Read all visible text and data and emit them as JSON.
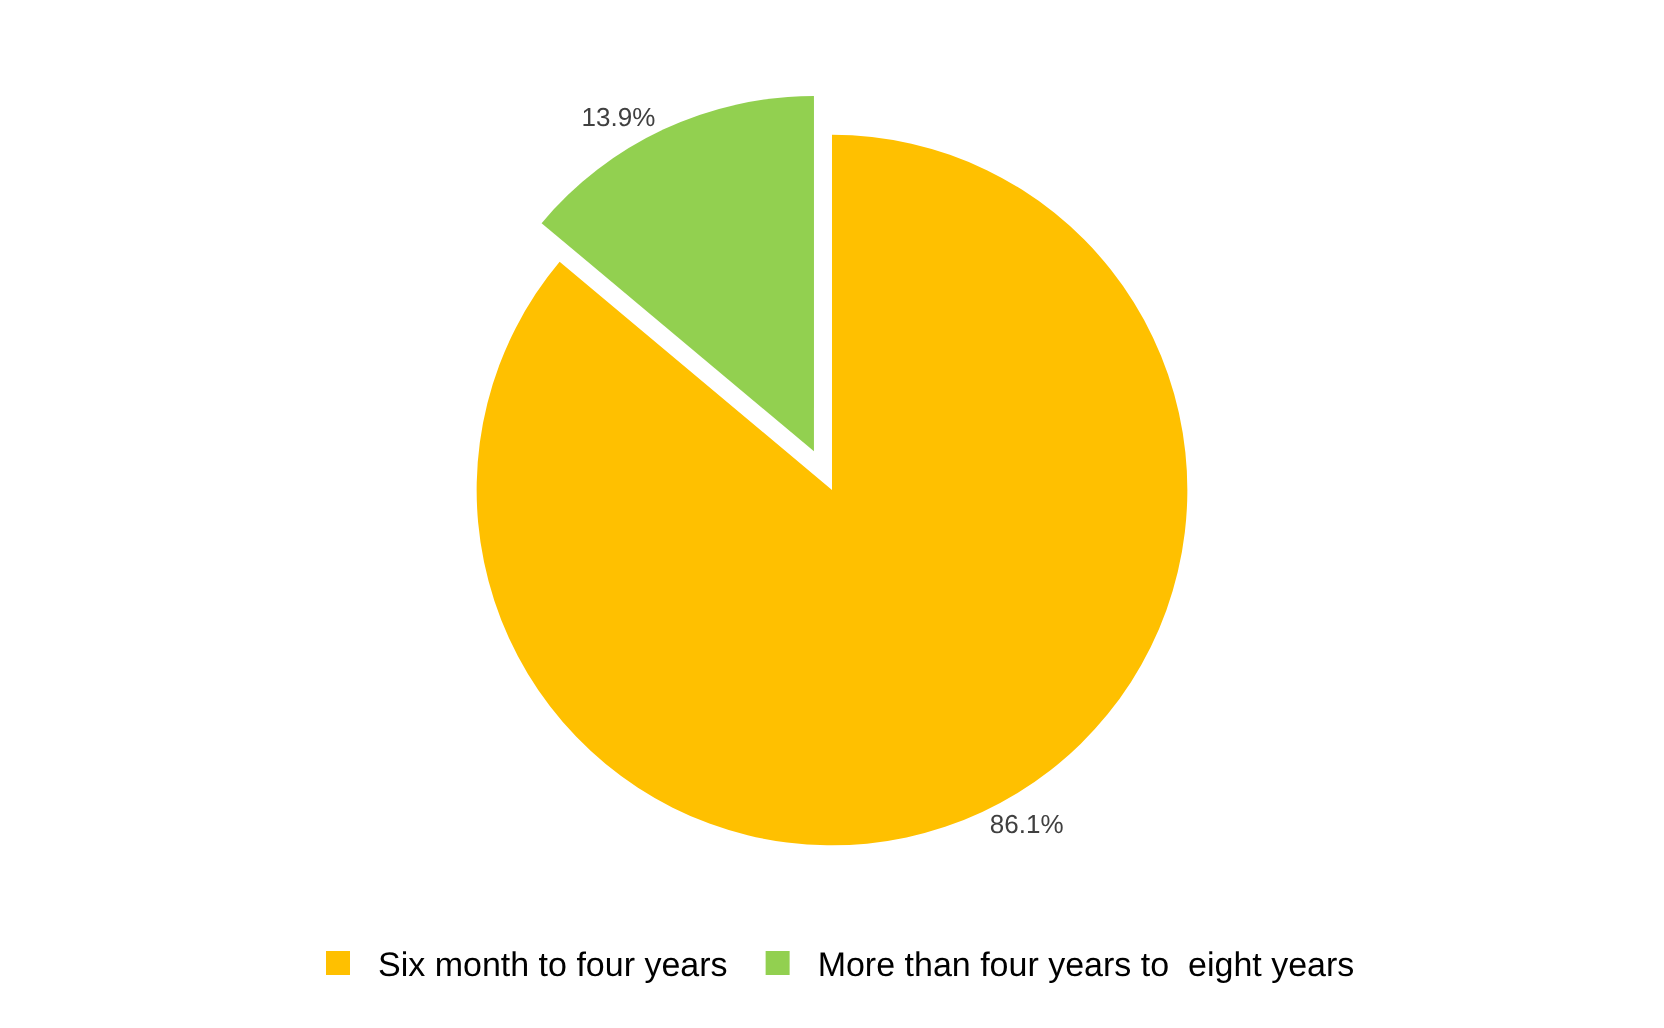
{
  "chart_data": {
    "type": "pie",
    "categories": [
      "Six month to four years",
      "More than four years to  eight years"
    ],
    "values": [
      86.1,
      13.9
    ],
    "colors": [
      "#ffc000",
      "#92d050"
    ],
    "value_labels": [
      "86.1%",
      "13.9%"
    ],
    "legend": "bottom"
  }
}
